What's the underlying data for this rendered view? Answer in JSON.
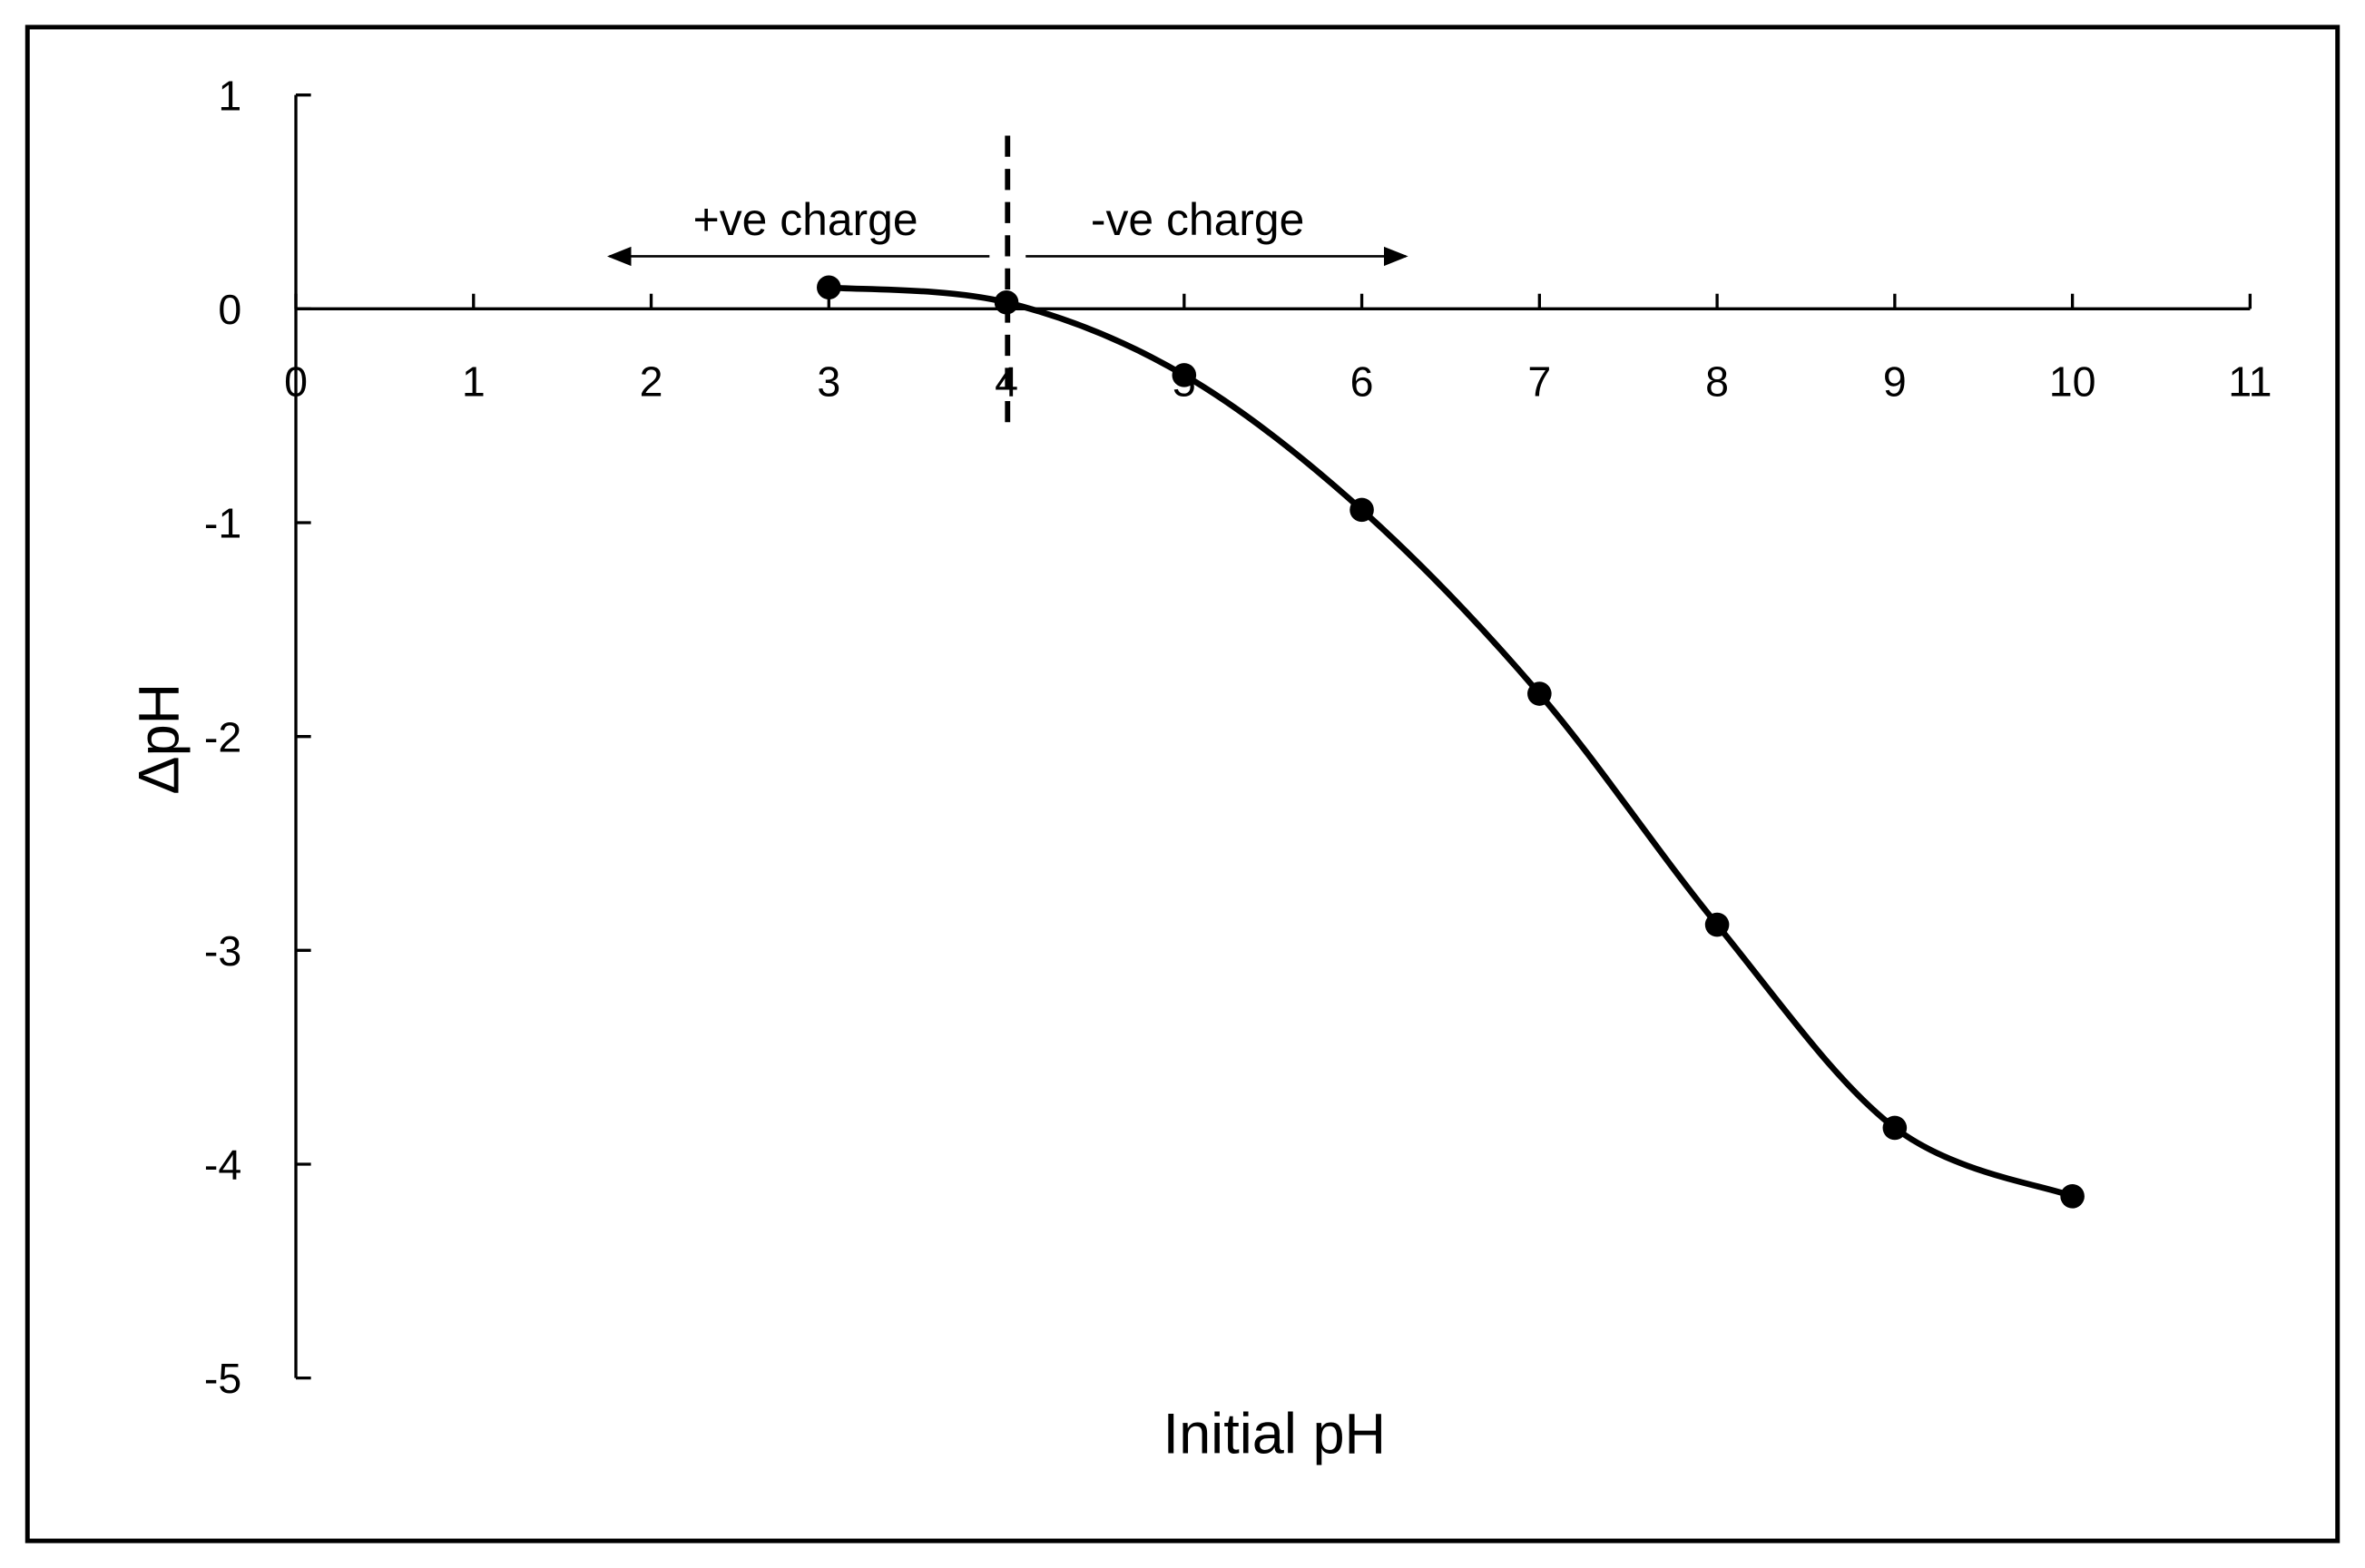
{
  "chart_data": {
    "type": "line",
    "title": "",
    "xlabel": "Initial pH",
    "ylabel": "ΔpH",
    "xlim": [
      0,
      11
    ],
    "ylim": [
      -5,
      1
    ],
    "xticks": [
      "0",
      "1",
      "2",
      "3",
      "4",
      "5",
      "6",
      "7",
      "8",
      "9",
      "10",
      "11"
    ],
    "yticks": [
      "1",
      "0",
      "-1",
      "-2",
      "-3",
      "-4",
      "-5"
    ],
    "grid": false,
    "series": [
      {
        "x": [
          3,
          4,
          5,
          6,
          7,
          8,
          9,
          10
        ],
        "y": [
          0.1,
          0.03,
          -0.31,
          -0.94,
          -1.8,
          -2.88,
          -3.83,
          -4.15
        ],
        "smooth": true,
        "marker": "circle",
        "color": "#000000"
      }
    ],
    "annotations": {
      "pzc_line_x": 4,
      "left_label": "+ve charge",
      "right_label": "-ve charge"
    }
  }
}
